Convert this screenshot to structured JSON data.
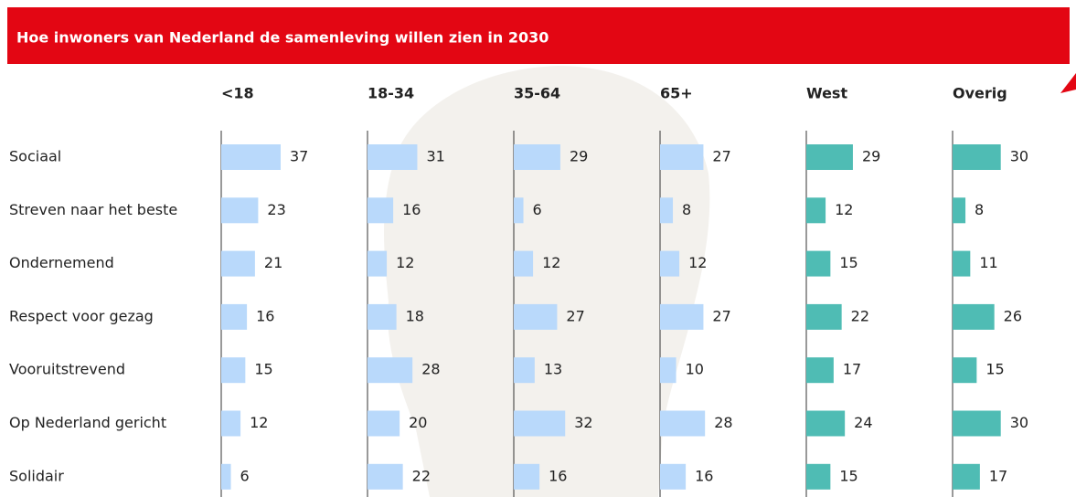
{
  "chart_data": {
    "type": "bar",
    "title": "Hoe inwoners van Nederland de samenleving willen zien in 2030",
    "categories": [
      "Sociaal",
      "Streven naar het beste",
      "Ondernemend",
      "Respect voor gezag",
      "Vooruitstrevend",
      "Op Nederland gericht",
      "Solidair"
    ],
    "series": [
      {
        "name": "<18",
        "color": "#b9d9fb",
        "values": [
          37,
          23,
          21,
          16,
          15,
          12,
          6
        ]
      },
      {
        "name": "18-34",
        "color": "#b9d9fb",
        "values": [
          31,
          16,
          12,
          18,
          28,
          20,
          22
        ]
      },
      {
        "name": "35-64",
        "color": "#b9d9fb",
        "values": [
          29,
          6,
          12,
          27,
          13,
          32,
          16
        ]
      },
      {
        "name": "65+",
        "color": "#b9d9fb",
        "values": [
          27,
          8,
          12,
          27,
          10,
          28,
          16
        ]
      },
      {
        "name": "West",
        "color": "#4fbcb4",
        "values": [
          29,
          12,
          15,
          22,
          17,
          24,
          15
        ]
      },
      {
        "name": "Overig",
        "color": "#4fbcb4",
        "values": [
          30,
          8,
          11,
          26,
          15,
          30,
          17
        ]
      }
    ]
  }
}
